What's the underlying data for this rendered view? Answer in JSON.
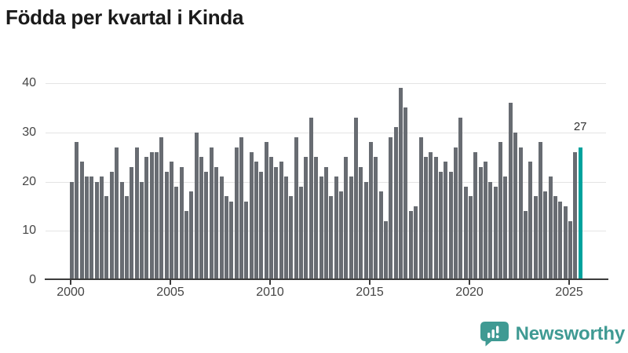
{
  "title": "Födda per kvartal i Kinda",
  "colors": {
    "bar": "#686c72",
    "highlight": "#00a29d",
    "grid": "#e4e4e4",
    "axis": "#3c3c3c",
    "tick_text": "#454545",
    "title_text": "#1a1a1a",
    "logo": "#3f9a93"
  },
  "chart_data": {
    "type": "bar",
    "title": "Födda per kvartal i Kinda",
    "x_unit": "quarter",
    "x_start": "2000 Q1",
    "x_end": "2025 Q3",
    "values": [
      20,
      28,
      24,
      21,
      21,
      20,
      21,
      17,
      22,
      27,
      20,
      17,
      23,
      27,
      20,
      25,
      26,
      26,
      29,
      22,
      24,
      19,
      23,
      14,
      18,
      30,
      25,
      22,
      27,
      23,
      21,
      17,
      16,
      27,
      29,
      16,
      26,
      24,
      22,
      28,
      25,
      23,
      24,
      21,
      17,
      29,
      19,
      25,
      33,
      25,
      21,
      23,
      17,
      21,
      18,
      25,
      21,
      33,
      23,
      20,
      28,
      25,
      18,
      12,
      29,
      31,
      39,
      35,
      14,
      15,
      29,
      25,
      26,
      25,
      22,
      24,
      22,
      27,
      33,
      19,
      17,
      26,
      23,
      24,
      20,
      19,
      28,
      21,
      36,
      30,
      27,
      14,
      24,
      17,
      28,
      18,
      21,
      17,
      16,
      15,
      12,
      26,
      27
    ],
    "highlight_last": true,
    "last_value_label": "27",
    "x_tick_labels": [
      "2000",
      "2005",
      "2010",
      "2015",
      "2020",
      "2025"
    ],
    "y_tick_labels": [
      "0",
      "10",
      "20",
      "30",
      "40"
    ],
    "y_ticks": [
      0,
      10,
      20,
      30,
      40
    ],
    "ylim": [
      0,
      40
    ],
    "grid": "horizontal",
    "legend": "none"
  },
  "footer": {
    "brand": "Newsworthy",
    "logo_icon": "bar-chart-speech-bubble-icon"
  }
}
